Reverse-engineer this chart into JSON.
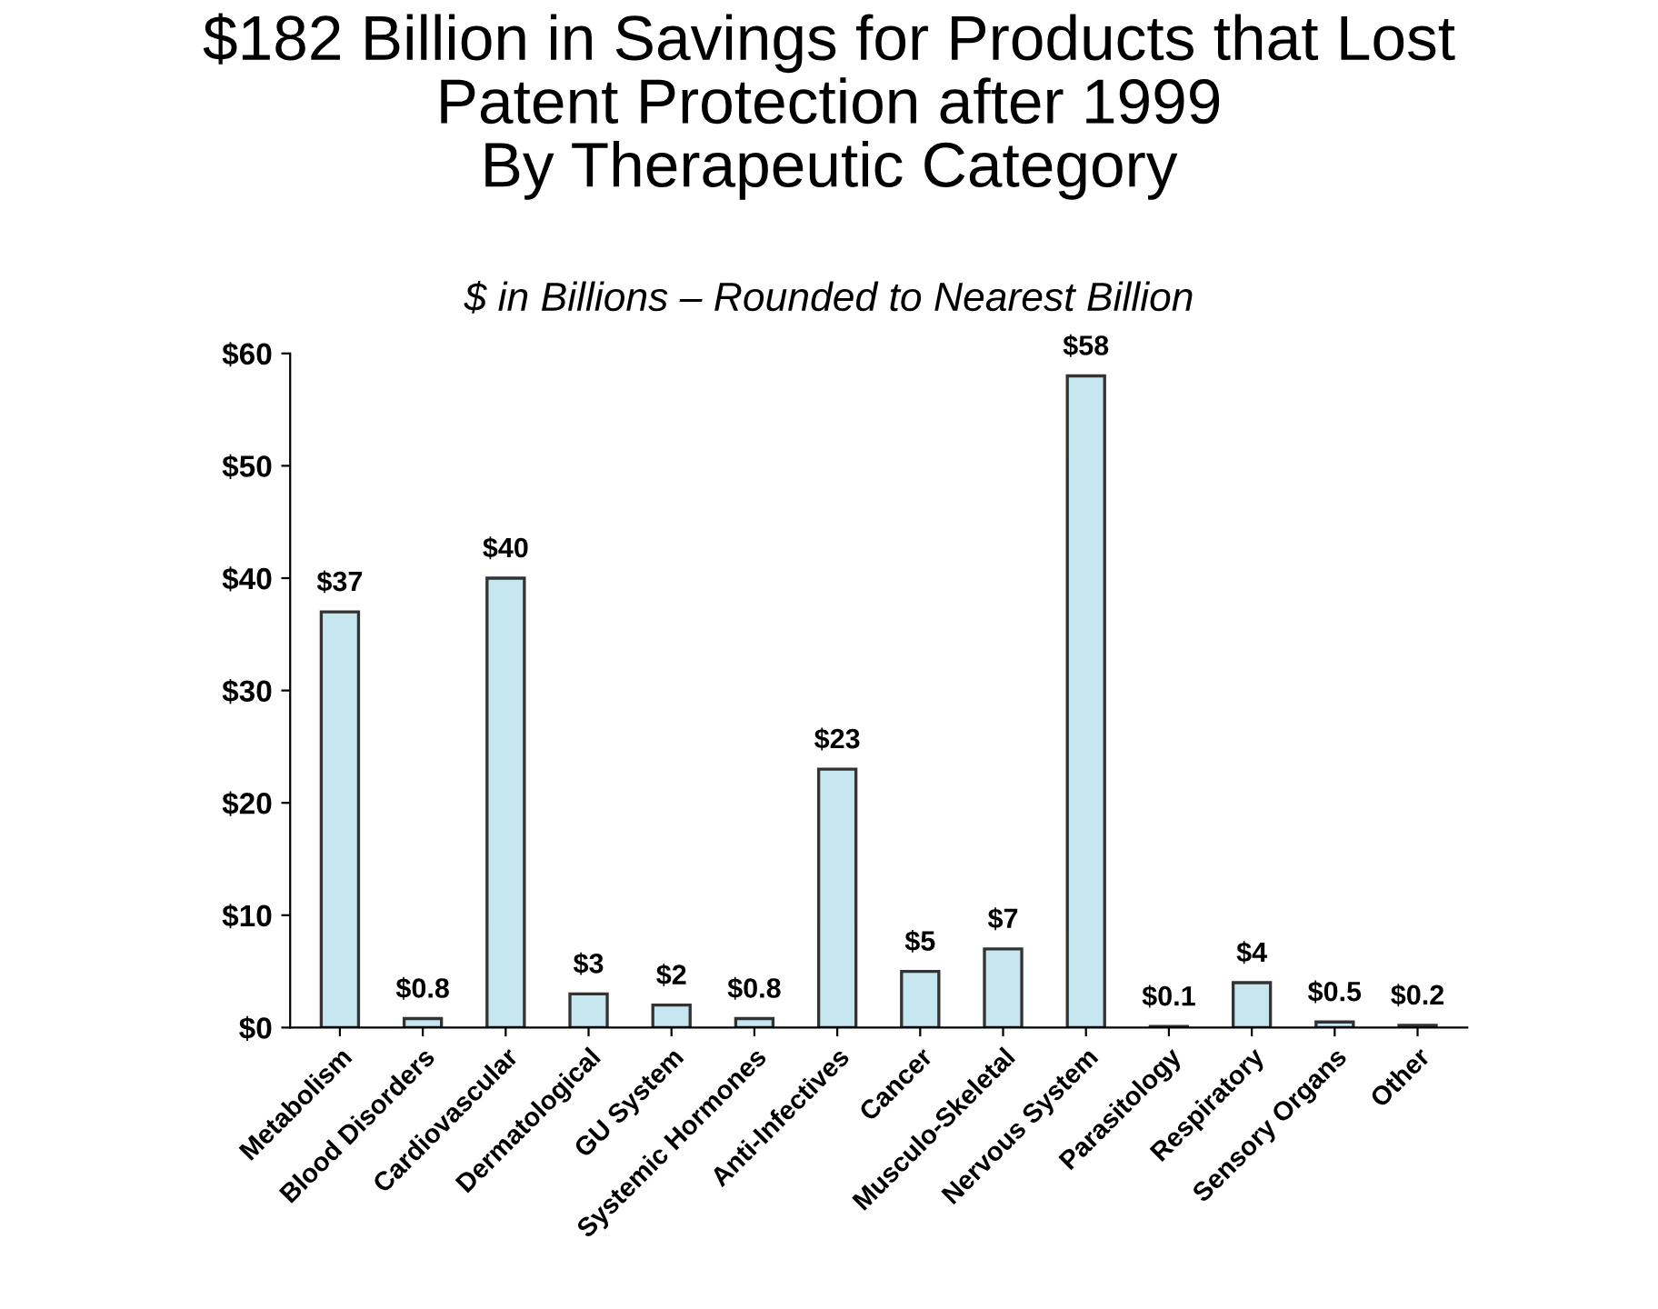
{
  "chart_data": {
    "type": "bar",
    "title": "$182 Billion in Savings for Products that Lost\nPatent Protection after 1999\nBy Therapeutic Category",
    "subtitle": "$ in Billions – Rounded to Nearest Billion",
    "categories": [
      "Metabolism",
      "Blood Disorders",
      "Cardiovascular",
      "Dermatological",
      "GU System",
      "Systemic Hormones",
      "Anti-Infectives",
      "Cancer",
      "Musculo-Skeletal",
      "Nervous System",
      "Parasitology",
      "Respiratory",
      "Sensory Organs",
      "Other"
    ],
    "values": [
      37,
      0.8,
      40,
      3,
      2,
      0.8,
      23,
      5,
      7,
      58,
      0.1,
      4,
      0.5,
      0.2
    ],
    "value_labels": [
      "$37",
      "$0.8",
      "$40",
      "$3",
      "$2",
      "$0.8",
      "$23",
      "$5",
      "$7",
      "$58",
      "$0.1",
      "$4",
      "$0.5",
      "$0.2"
    ],
    "color": "#c6e7ef",
    "ylim": [
      0,
      60
    ],
    "yticks": [
      {
        "value": 0,
        "label": "$0"
      },
      {
        "value": 10,
        "label": "$10"
      },
      {
        "value": 20,
        "label": "$20"
      },
      {
        "value": 30,
        "label": "$30"
      },
      {
        "value": 40,
        "label": "$40"
      },
      {
        "value": 50,
        "label": "$50"
      },
      {
        "value": 60,
        "label": "$60"
      }
    ],
    "grid": false,
    "legend": false
  }
}
